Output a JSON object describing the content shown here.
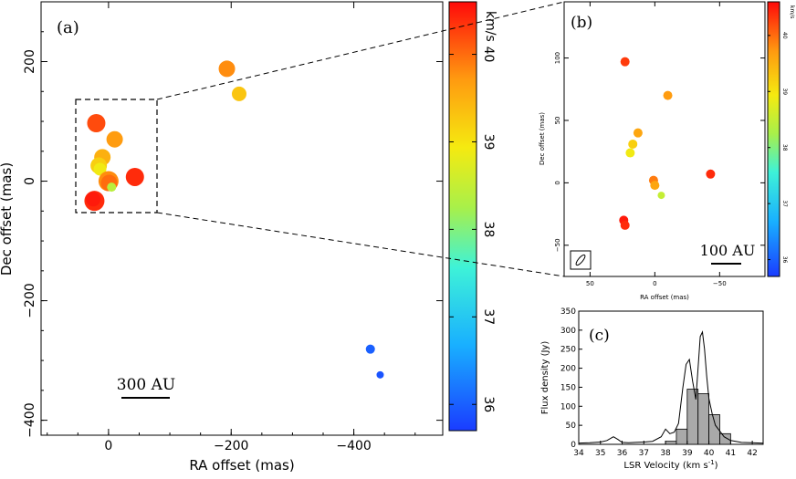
{
  "panels": {
    "a": {
      "label": "(a)",
      "xlabel": "RA offset (mas)",
      "ylabel": "Dec offset (mas)",
      "xlim": [
        110,
        -545
      ],
      "ylim": [
        -425,
        300
      ],
      "xticks": [
        0,
        -200,
        -400
      ],
      "yticks": [
        200,
        0,
        -200,
        -400
      ],
      "scalebar_label": "300 AU",
      "colorbar": {
        "unit": "km/s",
        "vmin": 35.7,
        "vmax": 40.6,
        "ticks": [
          36,
          37,
          38,
          39,
          40
        ]
      }
    },
    "b": {
      "label": "(b)",
      "xlabel": "RA offset (mas)",
      "ylabel": "Dec offset (mas)",
      "xlim": [
        70,
        -85
      ],
      "ylim": [
        -75,
        145
      ],
      "xticks": [
        50,
        0,
        -50
      ],
      "yticks": [
        100,
        50,
        0,
        -50
      ],
      "scalebar_label": "100 AU",
      "colorbar": {
        "unit": "km/s",
        "vmin": 35.7,
        "vmax": 40.6,
        "ticks": [
          36,
          37,
          38,
          39,
          40
        ]
      }
    },
    "c": {
      "label": "(c)",
      "xlabel": "LSR Velocity (km s",
      "xlabel_sup": "-1",
      "xlabel_end": ")",
      "ylabel": "Flux density (Jy)",
      "xlim": [
        34,
        42.5
      ],
      "ylim": [
        0,
        350
      ],
      "xticks": [
        34,
        35,
        36,
        37,
        38,
        39,
        40,
        41,
        42
      ],
      "yticks": [
        0,
        50,
        100,
        150,
        200,
        250,
        300,
        350
      ]
    }
  },
  "chart_data": [
    {
      "panel": "a",
      "type": "scatter",
      "xlabel": "RA offset (mas)",
      "ylabel": "Dec offset (mas)",
      "points": [
        {
          "x": 20,
          "y": 97,
          "v": 40.2,
          "size": 10
        },
        {
          "x": -10,
          "y": 70,
          "v": 39.7,
          "size": 9
        },
        {
          "x": 10,
          "y": 40,
          "v": 39.5,
          "size": 9
        },
        {
          "x": 16,
          "y": 26,
          "v": 39.2,
          "size": 9
        },
        {
          "x": 14,
          "y": 20,
          "v": 38.9,
          "size": 7
        },
        {
          "x": 0,
          "y": 0,
          "v": 39.8,
          "size": 11
        },
        {
          "x": -1,
          "y": -3,
          "v": 40.0,
          "size": 9
        },
        {
          "x": -5,
          "y": -10,
          "v": 38.4,
          "size": 5
        },
        {
          "x": -43,
          "y": 7,
          "v": 40.4,
          "size": 10
        },
        {
          "x": 23,
          "y": -33,
          "v": 40.4,
          "size": 11
        },
        {
          "x": 25,
          "y": -30,
          "v": 40.5,
          "size": 8
        },
        {
          "x": -193,
          "y": 188,
          "v": 39.8,
          "size": 9
        },
        {
          "x": -213,
          "y": 146,
          "v": 39.3,
          "size": 8
        },
        {
          "x": -427,
          "y": -281,
          "v": 36.0,
          "size": 5
        },
        {
          "x": -443,
          "y": -324,
          "v": 35.9,
          "size": 4
        }
      ]
    },
    {
      "panel": "b",
      "type": "scatter",
      "xlabel": "RA offset (mas)",
      "ylabel": "Dec offset (mas)",
      "points": [
        {
          "x": 23,
          "y": 97,
          "v": 40.3,
          "size": 5
        },
        {
          "x": -10,
          "y": 70,
          "v": 39.7,
          "size": 5
        },
        {
          "x": 13,
          "y": 40,
          "v": 39.6,
          "size": 5
        },
        {
          "x": 17,
          "y": 31,
          "v": 39.2,
          "size": 5
        },
        {
          "x": 19,
          "y": 24,
          "v": 38.9,
          "size": 5
        },
        {
          "x": 1,
          "y": 2,
          "v": 39.9,
          "size": 5
        },
        {
          "x": 0,
          "y": -2,
          "v": 39.6,
          "size": 5
        },
        {
          "x": -5,
          "y": -10,
          "v": 38.5,
          "size": 4
        },
        {
          "x": -43,
          "y": 7,
          "v": 40.4,
          "size": 5
        },
        {
          "x": 24,
          "y": -30,
          "v": 40.5,
          "size": 5
        },
        {
          "x": 23,
          "y": -34,
          "v": 40.4,
          "size": 5
        }
      ]
    },
    {
      "panel": "c",
      "type": "bar+line",
      "xlabel": "LSR Velocity (km s-1)",
      "ylabel": "Flux density (Jy)",
      "histogram": {
        "bin_width": 0.5,
        "bins": [
          {
            "center": 38.25,
            "value": 8
          },
          {
            "center": 38.75,
            "value": 40
          },
          {
            "center": 39.25,
            "value": 145
          },
          {
            "center": 39.75,
            "value": 133
          },
          {
            "center": 40.25,
            "value": 78
          },
          {
            "center": 40.75,
            "value": 28
          }
        ]
      },
      "spectrum": {
        "x": [
          34.0,
          34.5,
          35.0,
          35.3,
          35.6,
          35.8,
          36.0,
          36.3,
          36.6,
          37.0,
          37.4,
          37.8,
          38.0,
          38.2,
          38.4,
          38.6,
          38.8,
          38.95,
          39.1,
          39.25,
          39.4,
          39.5,
          39.6,
          39.7,
          39.8,
          39.9,
          40.0,
          40.15,
          40.3,
          40.5,
          40.7,
          41.0,
          41.5,
          42.0,
          42.5
        ],
        "y": [
          3,
          4,
          6,
          10,
          20,
          13,
          5,
          4,
          5,
          6,
          8,
          20,
          40,
          28,
          32,
          55,
          150,
          210,
          223,
          165,
          118,
          200,
          283,
          295,
          250,
          178,
          120,
          80,
          50,
          35,
          20,
          10,
          5,
          4,
          3
        ]
      }
    }
  ]
}
